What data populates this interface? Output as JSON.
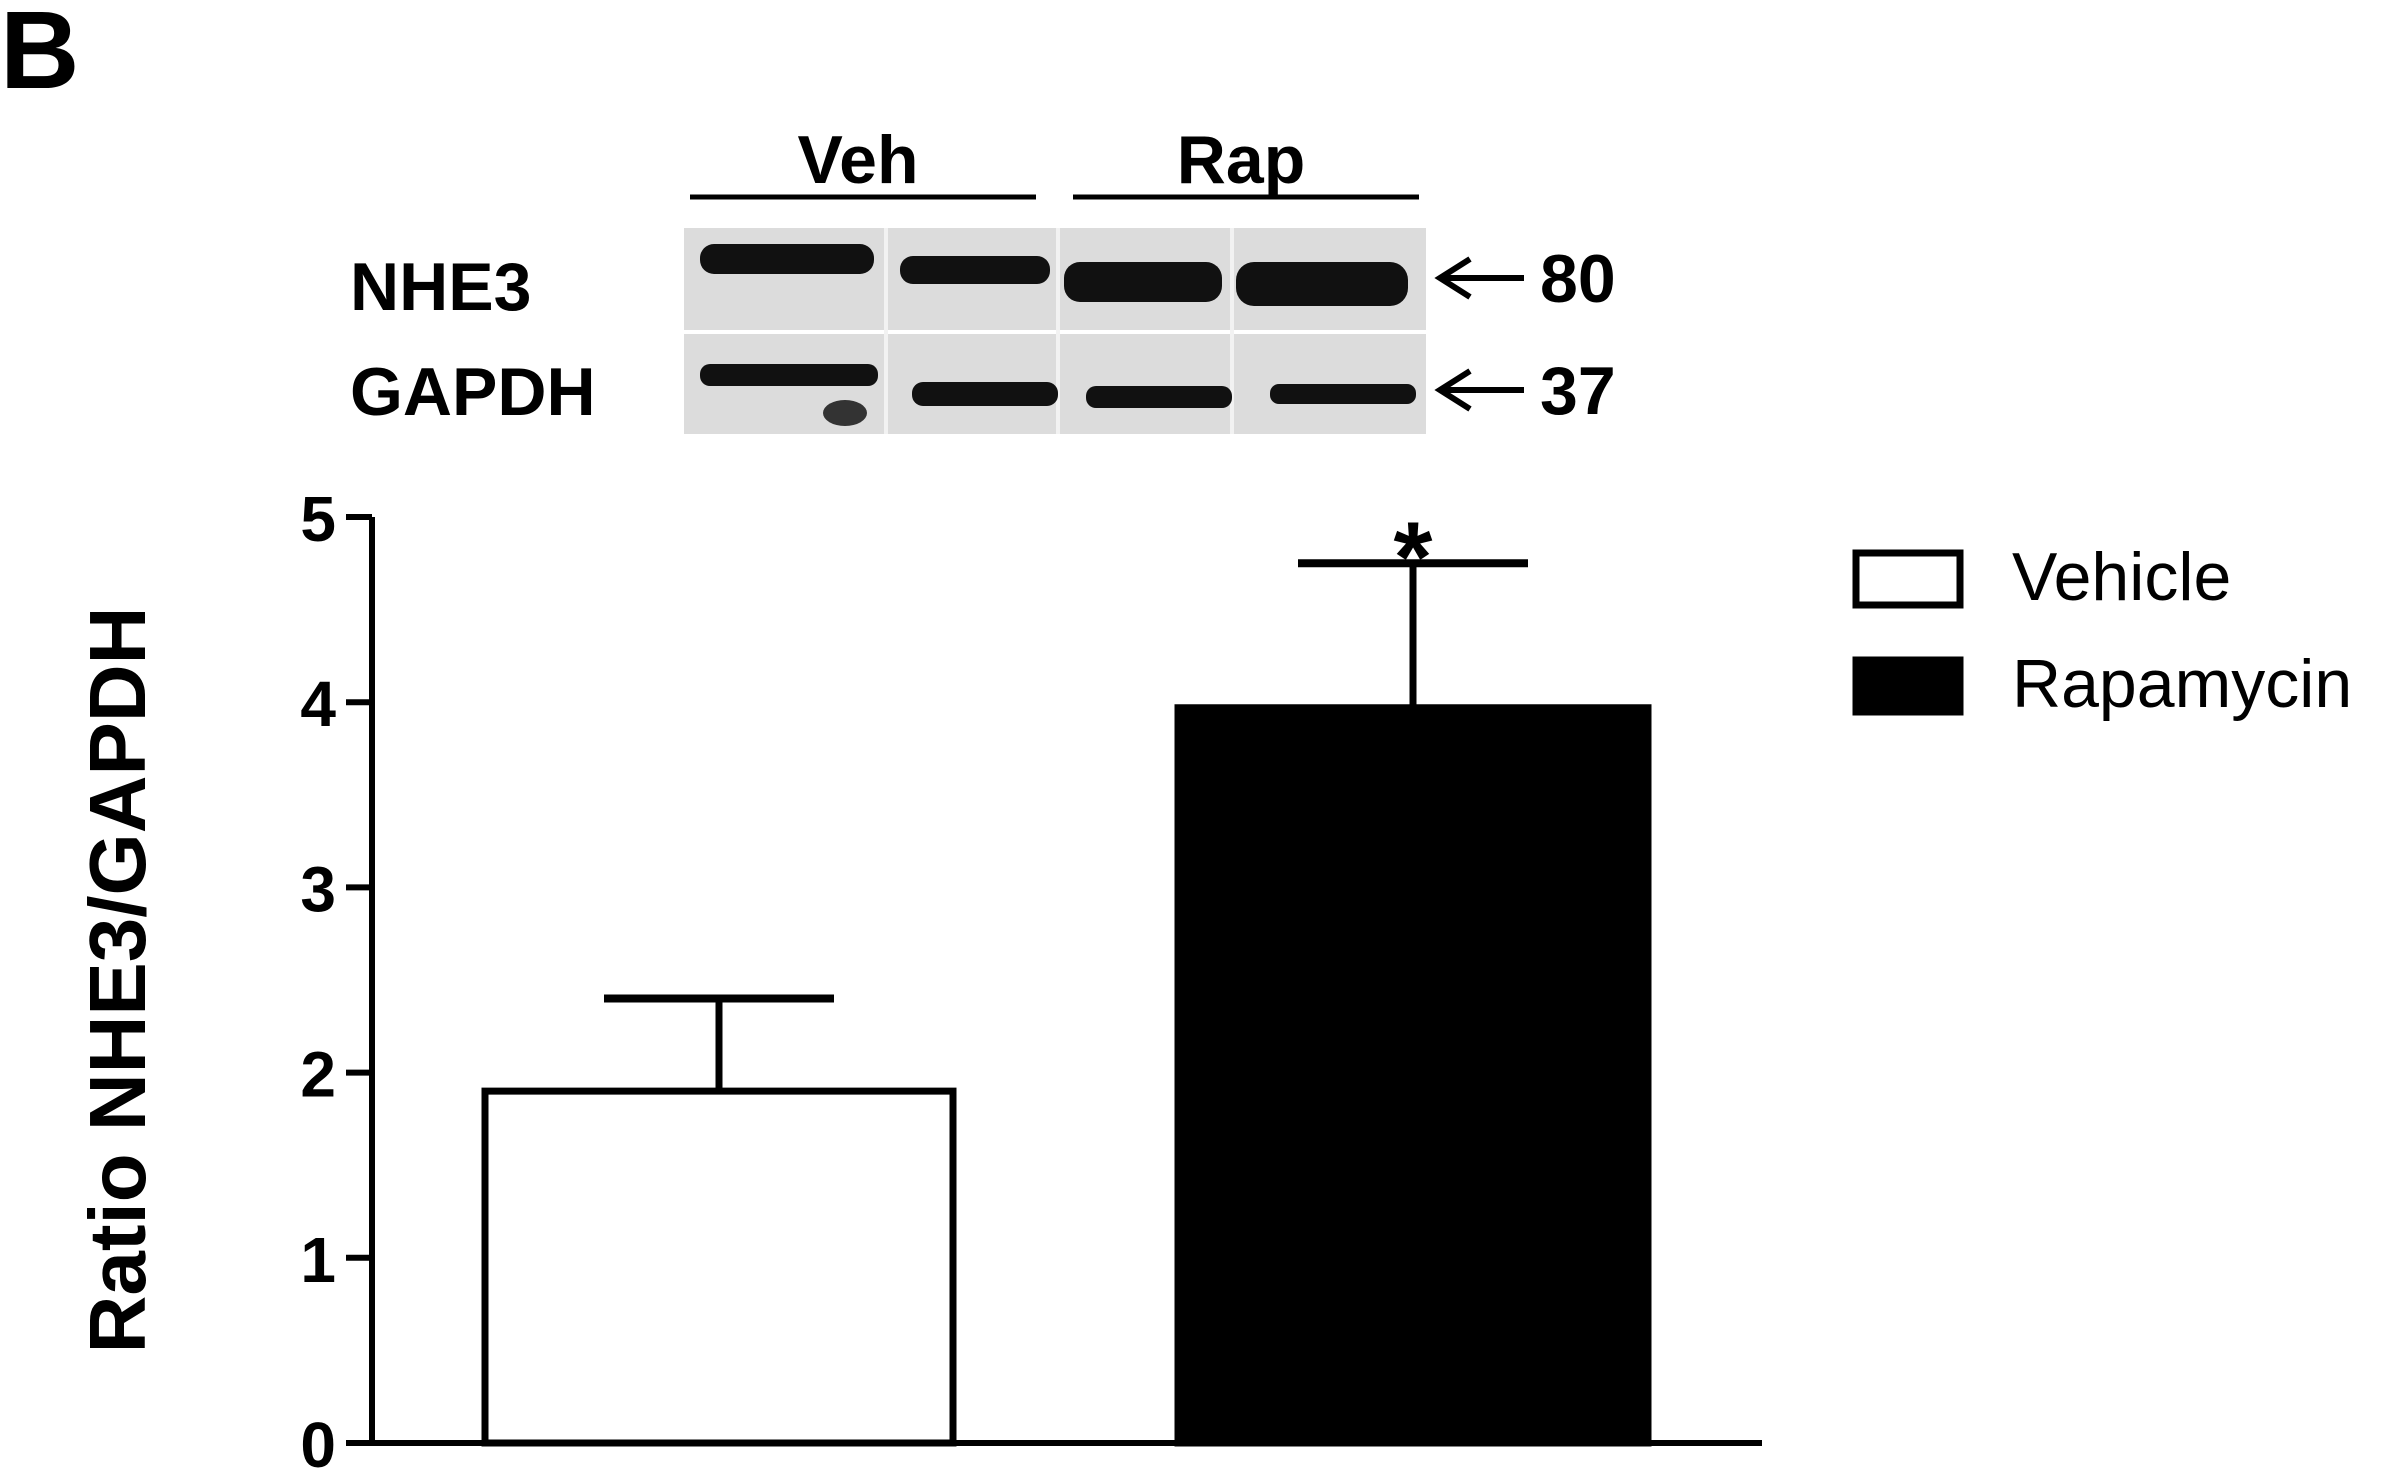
{
  "panel_label": "B",
  "blot": {
    "groups": [
      {
        "label": "Veh"
      },
      {
        "label": "Rap"
      }
    ],
    "rows": [
      {
        "protein": "NHE3",
        "marker": "80"
      },
      {
        "protein": "GAPDH",
        "marker": "37"
      }
    ],
    "colors": {
      "background": "#d9d9d9",
      "band": "#111111"
    }
  },
  "chart_data": {
    "type": "bar",
    "categories": [
      "Vehicle",
      "Rapamycin"
    ],
    "values": [
      1.9,
      3.97
    ],
    "error_upper": [
      0.5,
      0.78
    ],
    "ylabel": "Ratio NHE3/GAPDH",
    "xlabel": "",
    "ylim": [
      0,
      5
    ],
    "yticks": [
      "0",
      "1",
      "2",
      "3",
      "4",
      "5"
    ],
    "bar_fills": [
      "#ffffff",
      "#000000"
    ],
    "legend": {
      "placement": "right",
      "entries": [
        {
          "label": "Vehicle",
          "fill": "#ffffff"
        },
        {
          "label": "Rapamycin",
          "fill": "#000000"
        }
      ]
    },
    "annotations": [
      {
        "category": "Rapamycin",
        "text": "*"
      }
    ],
    "grid": false
  }
}
